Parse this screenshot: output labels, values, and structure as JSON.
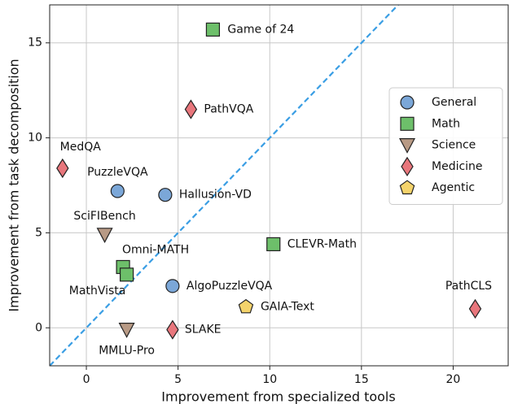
{
  "chart_data": {
    "type": "scatter",
    "xlabel": "Improvement from specialized tools",
    "ylabel": "Improvement from task decomposition",
    "xlim": [
      -2,
      23
    ],
    "ylim": [
      -2,
      17
    ],
    "xticks": [
      0,
      5,
      10,
      15,
      20
    ],
    "yticks": [
      0,
      5,
      10,
      15
    ],
    "grid": true,
    "legend": "upper right",
    "reference_line": {
      "slope": 1,
      "intercept": 0,
      "color": "#3a9ee4",
      "style": "dashed"
    },
    "series": [
      {
        "name": "General",
        "color": "#7ba7d8",
        "marker": "circle",
        "labels": [
          "PuzzleVQA",
          "Hallusion-VD",
          "AlgoPuzzleVQA"
        ],
        "x": [
          1.7,
          4.3,
          4.7
        ],
        "values": [
          7.2,
          7.0,
          2.2
        ]
      },
      {
        "name": "Math",
        "color": "#6dbf6a",
        "marker": "square",
        "labels": [
          "Game of 24",
          "CLEVR-Math",
          "Omni-MATH",
          "MathVista"
        ],
        "x": [
          6.9,
          10.2,
          2.0,
          2.2
        ],
        "values": [
          15.7,
          4.4,
          3.2,
          2.8
        ]
      },
      {
        "name": "Science",
        "color": "#b89a85",
        "marker": "triangle-down",
        "labels": [
          "SciFIBench",
          "MMLU-Pro"
        ],
        "x": [
          1.0,
          2.2
        ],
        "values": [
          4.9,
          -0.1
        ]
      },
      {
        "name": "Medicine",
        "color": "#e8767c",
        "marker": "diamond",
        "labels": [
          "PathVQA",
          "MedQA",
          "SLAKE",
          "PathCLS"
        ],
        "x": [
          5.7,
          -1.3,
          4.7,
          21.2
        ],
        "values": [
          11.5,
          8.4,
          -0.1,
          1.0
        ]
      },
      {
        "name": "Agentic",
        "color": "#f4d36b",
        "marker": "pentagon",
        "labels": [
          "GAIA-Text"
        ],
        "x": [
          8.7
        ],
        "values": [
          1.1
        ]
      }
    ]
  }
}
